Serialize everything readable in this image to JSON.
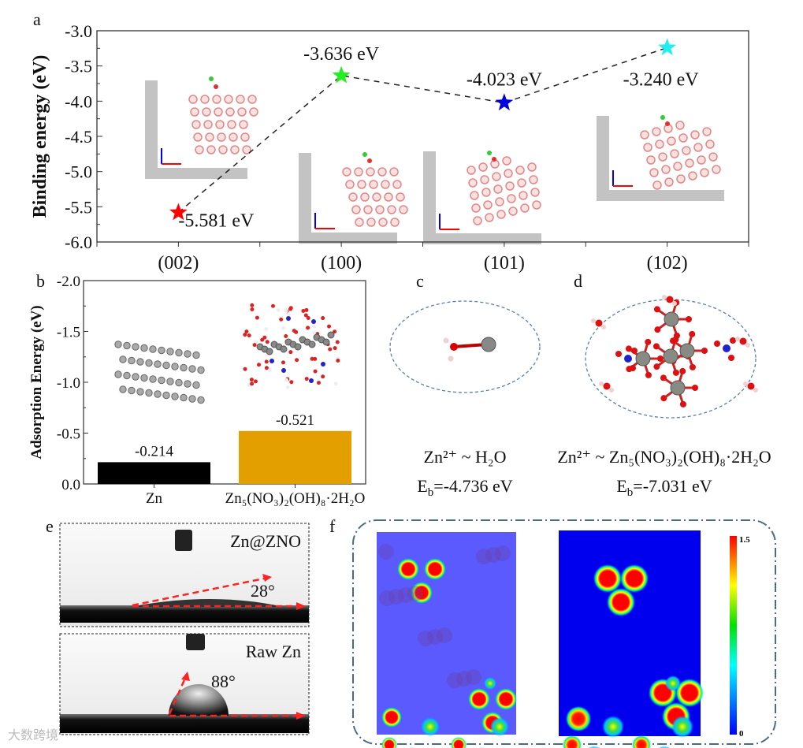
{
  "chart_data": [
    {
      "panel": "a",
      "type": "scatter",
      "ylabel": "Binding energy (eV)",
      "ylim": [
        -6.0,
        -3.0
      ],
      "yticks": [
        "-3.0",
        "-3.5",
        "-4.0",
        "-4.5",
        "-5.0",
        "-5.5",
        "-6.0"
      ],
      "ytick_values": [
        -3.0,
        -3.5,
        -4.0,
        -4.5,
        -5.0,
        -5.5,
        -6.0
      ],
      "categories": [
        "(002)",
        "(100)",
        "(101)",
        "(102)"
      ],
      "values": [
        -5.581,
        -3.636,
        -4.023,
        -3.24
      ],
      "data_labels": [
        "-5.581 eV",
        "-3.636 eV",
        "-4.023 eV",
        "-3.240 eV"
      ],
      "colors": [
        "#ff0000",
        "#22ee22",
        "#0000dd",
        "#22eeee"
      ],
      "line_style": "dashed",
      "grid": false
    },
    {
      "panel": "b",
      "type": "bar",
      "ylabel": "Adsorption Energy (eV)",
      "ylim": [
        0.0,
        -2.0
      ],
      "yticks": [
        "0.0",
        "-0.5",
        "-1.0",
        "-1.5",
        "-2.0"
      ],
      "ytick_values": [
        0.0,
        -0.5,
        -1.0,
        -1.5,
        -2.0
      ],
      "categories": [
        "Zn",
        "Zn₅(NO₃)₂(OH)₈·2H₂O"
      ],
      "values": [
        -0.214,
        -0.521
      ],
      "data_labels": [
        "-0.214",
        "-0.521"
      ],
      "colors": [
        "#000000",
        "#e39e00"
      ],
      "grid": false
    }
  ],
  "panels": {
    "a": "a",
    "b": "b",
    "c": "c",
    "d": "d",
    "e": "e",
    "f": "f"
  },
  "panel_c": {
    "formula": "Zn²⁺ ~ H₂O",
    "eb_main": "E",
    "eb_sub": "b",
    "eb_value": "=-4.736 eV"
  },
  "panel_d": {
    "formula": "Zn²⁺ ~ Zn₅(NO₃)₂(OH)₈·2H₂O",
    "eb_main": "E",
    "eb_sub": "b",
    "eb_value": "=-7.031 eV"
  },
  "panel_e": {
    "top_label": "Zn@ZNO",
    "top_angle": "28°",
    "bottom_label": "Raw Zn",
    "bottom_angle": "88°"
  },
  "panel_f": {
    "colorbar_max": "1.5",
    "colorbar_min": "0"
  },
  "watermark": "大数跨境"
}
